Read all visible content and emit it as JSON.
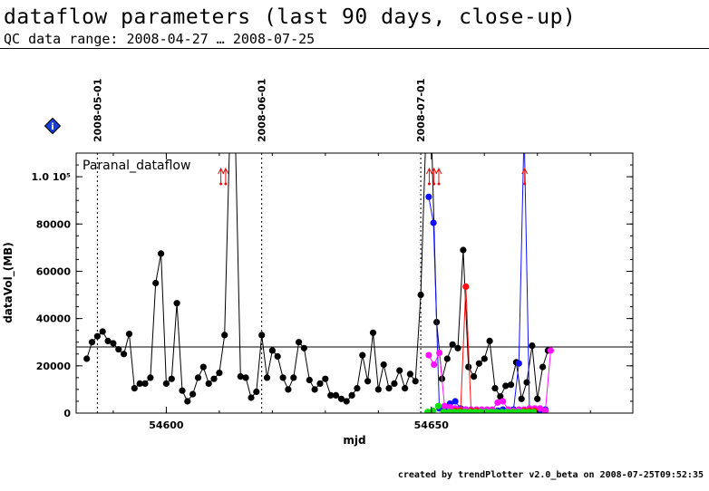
{
  "header": {
    "title": "dataflow parameters (last 90 days, close-up)",
    "subtitle": "QC data range: 2008-04-27 … 2008-07-25"
  },
  "footer": {
    "text": "created by trendPlotter v2.0_beta on 2008-07-25T09:52:35"
  },
  "info_badge": {
    "glyph": "i",
    "color": "#1a3fd6"
  },
  "chart_data": {
    "type": "scatter",
    "title": "Paranal_dataflow",
    "xlabel": "mjd",
    "ylabel": "dataVol_(MB)",
    "xlim": [
      54583,
      54688
    ],
    "ylim": [
      0,
      110000
    ],
    "x_ticks": [
      54600,
      54650
    ],
    "x_tick_labels": [
      "54600",
      "54650"
    ],
    "y_ticks": [
      0,
      20000,
      40000,
      60000,
      80000,
      100000
    ],
    "y_tick_labels": [
      "0",
      "20000",
      "40000",
      "60000",
      "80000",
      "1.0 10⁵"
    ],
    "date_markers": [
      {
        "x": 54587,
        "label": "2008-05-01"
      },
      {
        "x": 54618,
        "label": "2008-06-01"
      },
      {
        "x": 54648,
        "label": "2008-07-01"
      }
    ],
    "reference_line_y": 28000,
    "offscale_x": [
      54610.3,
      54611.2,
      54649.6,
      54650.5,
      54651.4,
      54667.6
    ],
    "series": [
      {
        "color": "#000000",
        "connected": true,
        "points": [
          [
            54585,
            23000
          ],
          [
            54586,
            30000
          ],
          [
            54587,
            32500
          ],
          [
            54588,
            34500
          ],
          [
            54589,
            30500
          ],
          [
            54590,
            29500
          ],
          [
            54591,
            27000
          ],
          [
            54592,
            25000
          ],
          [
            54593,
            33500
          ],
          [
            54594,
            10500
          ],
          [
            54595,
            12500
          ],
          [
            54596,
            12500
          ],
          [
            54597,
            15000
          ],
          [
            54598,
            55000
          ],
          [
            54599,
            67500
          ],
          [
            54600,
            12500
          ],
          [
            54601,
            14500
          ],
          [
            54602,
            46500
          ],
          [
            54603,
            9500
          ],
          [
            54604,
            5000
          ],
          [
            54605,
            8000
          ],
          [
            54606,
            15000
          ],
          [
            54607,
            19500
          ],
          [
            54608,
            12500
          ],
          [
            54609,
            14500
          ],
          [
            54610,
            17000
          ],
          [
            54611,
            33000
          ],
          [
            54612,
            120000
          ],
          [
            54613,
            120000
          ],
          [
            54614,
            15500
          ],
          [
            54615,
            15000
          ],
          [
            54616,
            6500
          ],
          [
            54617,
            9000
          ],
          [
            54618,
            33000
          ],
          [
            54619,
            15000
          ],
          [
            54620,
            26500
          ],
          [
            54621,
            24000
          ],
          [
            54622,
            15000
          ],
          [
            54623,
            10000
          ],
          [
            54624,
            15000
          ],
          [
            54625,
            30000
          ],
          [
            54626,
            27500
          ],
          [
            54627,
            14000
          ],
          [
            54628,
            10000
          ],
          [
            54629,
            12500
          ],
          [
            54630,
            14500
          ],
          [
            54631,
            7500
          ],
          [
            54632,
            7500
          ],
          [
            54633,
            6000
          ],
          [
            54634,
            5000
          ],
          [
            54635,
            7500
          ],
          [
            54636,
            10500
          ],
          [
            54637,
            24500
          ],
          [
            54638,
            13500
          ],
          [
            54639,
            34000
          ],
          [
            54640,
            10000
          ],
          [
            54641,
            20500
          ],
          [
            54642,
            10500
          ],
          [
            54643,
            12500
          ],
          [
            54644,
            18000
          ],
          [
            54645,
            10500
          ],
          [
            54646,
            16500
          ],
          [
            54647,
            13500
          ],
          [
            54648,
            50000
          ],
          [
            54649,
            120000
          ],
          [
            54650,
            120000
          ],
          [
            54651,
            38500
          ],
          [
            54652,
            14500
          ],
          [
            54653,
            23000
          ],
          [
            54654,
            29000
          ],
          [
            54655,
            27500
          ],
          [
            54656,
            69000
          ],
          [
            54657,
            19500
          ],
          [
            54658,
            15500
          ],
          [
            54659,
            21000
          ],
          [
            54660,
            23000
          ],
          [
            54661,
            30500
          ],
          [
            54662,
            10500
          ],
          [
            54663,
            7000
          ],
          [
            54664,
            11500
          ],
          [
            54665,
            12000
          ],
          [
            54666,
            21500
          ],
          [
            54667,
            6000
          ],
          [
            54668,
            13000
          ],
          [
            54669,
            28500
          ],
          [
            54670,
            6000
          ],
          [
            54671,
            19500
          ],
          [
            54672,
            26500
          ]
        ]
      },
      {
        "color": "#1010ff",
        "connected": true,
        "points": [
          [
            54649.5,
            91500
          ],
          [
            54650.4,
            80500
          ],
          [
            54651.5,
            2000
          ],
          [
            54652.5,
            1500
          ],
          [
            54653.5,
            4000
          ],
          [
            54654.5,
            5000
          ],
          [
            54655.5,
            2000
          ],
          [
            54656.5,
            1500
          ],
          [
            54657.5,
            1000
          ],
          [
            54658.5,
            1000
          ],
          [
            54659.5,
            1000
          ],
          [
            54660.5,
            1000
          ],
          [
            54661.5,
            1000
          ],
          [
            54662.5,
            1000
          ],
          [
            54663.5,
            1500
          ],
          [
            54664.5,
            1000
          ],
          [
            54665.5,
            1500
          ],
          [
            54666.5,
            21000
          ],
          [
            54667.5,
            120000
          ],
          [
            54668.5,
            1000
          ],
          [
            54669.5,
            1000
          ],
          [
            54670.5,
            1000
          ],
          [
            54671.5,
            1500
          ]
        ]
      },
      {
        "color": "#ff10ff",
        "connected": true,
        "points": [
          [
            54649.5,
            24500
          ],
          [
            54650.5,
            20500
          ],
          [
            54651.5,
            25500
          ],
          [
            54652.5,
            3000
          ],
          [
            54653.5,
            2500
          ],
          [
            54654.5,
            2000
          ],
          [
            54655.5,
            1500
          ],
          [
            54656.5,
            1500
          ],
          [
            54657.5,
            1500
          ],
          [
            54658.5,
            1500
          ],
          [
            54659.5,
            1500
          ],
          [
            54660.5,
            1500
          ],
          [
            54661.5,
            1500
          ],
          [
            54662.5,
            4500
          ],
          [
            54663.5,
            5000
          ],
          [
            54664.5,
            1500
          ],
          [
            54665.5,
            1000
          ],
          [
            54666.5,
            1500
          ],
          [
            54667.5,
            1500
          ],
          [
            54668.5,
            2000
          ],
          [
            54669.5,
            2000
          ],
          [
            54670.5,
            2000
          ],
          [
            54671.5,
            1000
          ],
          [
            54672.5,
            26500
          ]
        ]
      },
      {
        "color": "#ff1010",
        "connected": true,
        "points": [
          [
            54654.5,
            1000
          ],
          [
            54655.5,
            1000
          ],
          [
            54656.5,
            53500
          ],
          [
            54657.5,
            1000
          ],
          [
            54658.5,
            1000
          ],
          [
            54667.5,
            1000
          ],
          [
            54668.5,
            1000
          ],
          [
            54669.5,
            1000
          ]
        ]
      },
      {
        "color": "#10dd10",
        "connected": false,
        "points": [
          [
            54649.3,
            500
          ],
          [
            54650.3,
            1000
          ],
          [
            54651.3,
            3000
          ],
          [
            54652.3,
            500
          ],
          [
            54653.3,
            500
          ],
          [
            54654.3,
            500
          ],
          [
            54655.3,
            500
          ],
          [
            54656.3,
            500
          ],
          [
            54657.3,
            500
          ],
          [
            54658.3,
            500
          ],
          [
            54659.3,
            500
          ],
          [
            54660.3,
            500
          ],
          [
            54661.3,
            500
          ],
          [
            54662.3,
            500
          ],
          [
            54663.3,
            500
          ],
          [
            54664.3,
            500
          ],
          [
            54665.3,
            500
          ],
          [
            54666.3,
            500
          ],
          [
            54667.3,
            500
          ],
          [
            54668.3,
            500
          ],
          [
            54669.3,
            500
          ]
        ]
      }
    ]
  }
}
